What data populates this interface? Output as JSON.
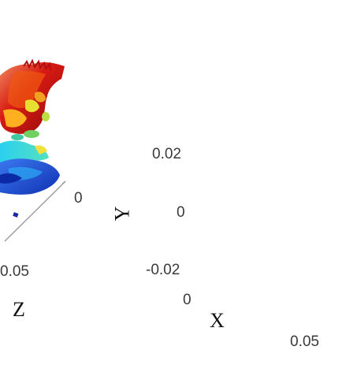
{
  "left_panel": {
    "tick_z_0": "0",
    "tick_z_005": "0.05",
    "axis_z": "Z"
  },
  "right_panel": {
    "tick_y_002": "0.02",
    "tick_y_0": "0",
    "tick_y_m002": "-0.02",
    "tick_x_0": "0",
    "tick_x_005": "0.05",
    "axis_y": "Y",
    "axis_x": "X"
  },
  "colors": {
    "red": "#c8100e",
    "orange": "#f07a18",
    "yellow": "#e9d23a",
    "green": "#8ccf4a",
    "cyan": "#28c4e8",
    "blue": "#1f4fd8",
    "dark_blue": "#0d28b8"
  }
}
